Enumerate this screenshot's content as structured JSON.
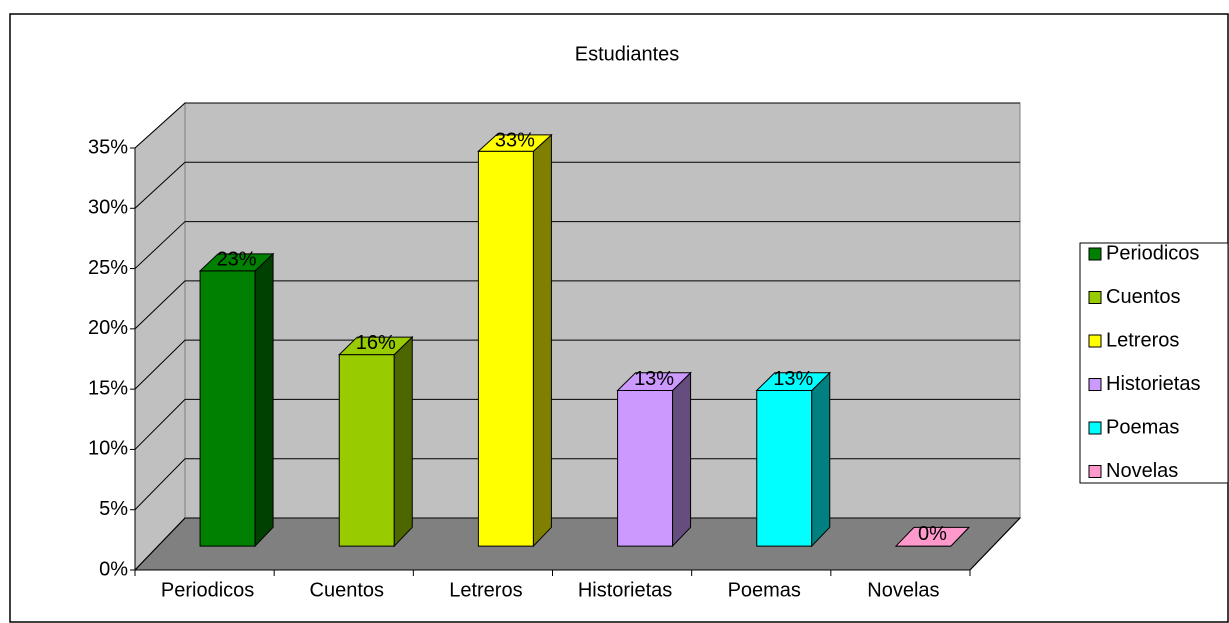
{
  "chart_data": {
    "type": "bar3d",
    "title": "Estudiantes",
    "categories": [
      "Periodicos",
      "Cuentos",
      "Letreros",
      "Historietas",
      "Poemas",
      "Novelas"
    ],
    "values": [
      23,
      16,
      33,
      13,
      13,
      0
    ],
    "value_labels": [
      "23%",
      "16%",
      "33%",
      "13%",
      "13%",
      "0%"
    ],
    "colors": [
      "#008000",
      "#99cc00",
      "#ffff00",
      "#cc99ff",
      "#00ffff",
      "#ff99cc"
    ],
    "ylim": [
      0,
      35
    ],
    "yticks": [
      {
        "value": 0,
        "label": "0%"
      },
      {
        "value": 5,
        "label": "5%"
      },
      {
        "value": 10,
        "label": "10%"
      },
      {
        "value": 15,
        "label": "15%"
      },
      {
        "value": 20,
        "label": "20%"
      },
      {
        "value": 25,
        "label": "25%"
      },
      {
        "value": 30,
        "label": "30%"
      },
      {
        "value": 35,
        "label": "35%"
      }
    ],
    "grid": true,
    "legend": "right"
  }
}
